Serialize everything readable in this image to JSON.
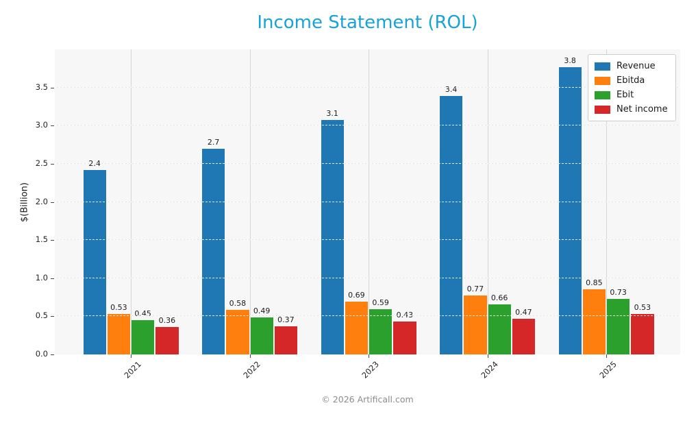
{
  "title": "Income Statement (ROL)",
  "title_color": "#17a3d8",
  "ylabel": "$(Billion)",
  "footer": "© 2026 Artificall.com",
  "colors": {
    "plot_background": "#f7f7f7",
    "grid_back": "#e2e2e2",
    "grid_vertical": "#d6d6d6",
    "legend_border": "#cccccc",
    "footer_text": "#8c8c8c"
  },
  "chart_data": {
    "type": "bar",
    "title": "Income Statement (ROL)",
    "xlabel": "",
    "ylabel": "$(Billion)",
    "categories": [
      "2021",
      "2022",
      "2023",
      "2024",
      "2025"
    ],
    "series": [
      {
        "name": "Revenue",
        "color": "#1f77b4",
        "values": [
          2.42,
          2.7,
          3.07,
          3.39,
          3.77
        ],
        "labels": [
          "2.4",
          "2.7",
          "3.1",
          "3.4",
          "3.8"
        ]
      },
      {
        "name": "Ebitda",
        "color": "#ff7f0e",
        "values": [
          0.53,
          0.58,
          0.69,
          0.77,
          0.85
        ],
        "labels": [
          "0.53",
          "0.58",
          "0.69",
          "0.77",
          "0.85"
        ]
      },
      {
        "name": "Ebit",
        "color": "#2ca02c",
        "values": [
          0.45,
          0.49,
          0.59,
          0.66,
          0.73
        ],
        "labels": [
          "0.45",
          "0.49",
          "0.59",
          "0.66",
          "0.73"
        ]
      },
      {
        "name": "Net income",
        "color": "#d62728",
        "values": [
          0.36,
          0.37,
          0.43,
          0.47,
          0.53
        ],
        "labels": [
          "0.36",
          "0.37",
          "0.43",
          "0.47",
          "0.53"
        ]
      }
    ],
    "ylim": [
      0,
      4.0
    ],
    "yticks": [
      "0.0",
      "0.5",
      "1.0",
      "1.5",
      "2.0",
      "2.5",
      "3.0",
      "3.5"
    ],
    "grid": true,
    "legend_position": "upper right",
    "xtick_rotation": 45
  }
}
